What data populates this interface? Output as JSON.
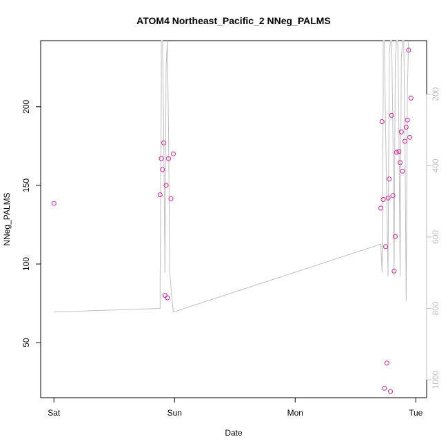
{
  "chart_data": {
    "type": "scatter",
    "title": "ATOM4 Northeast_Pacific_2 NNeg_PALMS",
    "xlabel": "Date",
    "ylabel": "NNeg_PALMS",
    "x_ticks": [
      {
        "x": 0,
        "label": "Sat"
      },
      {
        "x": 1,
        "label": "Sun"
      },
      {
        "x": 2,
        "label": "Mon"
      },
      {
        "x": 3,
        "label": "Tue"
      }
    ],
    "y_ticks": [
      50,
      100,
      150,
      200
    ],
    "y2_ticks": [
      200,
      400,
      600,
      800,
      1000
    ],
    "xlim": [
      -0.11,
      3.09
    ],
    "ylim": [
      15,
      242
    ],
    "y2lim": [
      50,
      1050
    ],
    "y2_reversed": true,
    "point_color": "#e6199b",
    "line_color": "#bebebe",
    "series": [
      {
        "kind": "points",
        "points": [
          [
            0.0,
            138.5
          ],
          [
            0.88,
            144.0
          ],
          [
            0.89,
            167.0
          ],
          [
            0.9,
            160.0
          ],
          [
            0.91,
            177.0
          ],
          [
            0.92,
            80.0
          ],
          [
            0.93,
            150.0
          ],
          [
            0.94,
            78.5
          ],
          [
            0.95,
            167.0
          ],
          [
            0.97,
            141.5
          ],
          [
            0.99,
            170.0
          ],
          [
            2.71,
            135.5
          ],
          [
            2.72,
            190.5
          ],
          [
            2.73,
            141.0
          ],
          [
            2.74,
            21.0
          ],
          [
            2.75,
            111.0
          ],
          [
            2.76,
            37.0
          ],
          [
            2.77,
            142.0
          ],
          [
            2.78,
            154.0
          ],
          [
            2.79,
            19.0
          ],
          [
            2.8,
            194.5
          ],
          [
            2.81,
            143.5
          ],
          [
            2.82,
            95.5
          ],
          [
            2.83,
            117.5
          ],
          [
            2.84,
            171.0
          ],
          [
            2.86,
            171.5
          ],
          [
            2.87,
            164.5
          ],
          [
            2.88,
            184.0
          ],
          [
            2.89,
            159.0
          ],
          [
            2.91,
            178.0
          ],
          [
            2.92,
            187.0
          ],
          [
            2.93,
            191.5
          ],
          [
            2.94,
            236.0
          ],
          [
            2.95,
            180.5
          ],
          [
            2.96,
            205.5
          ]
        ]
      },
      {
        "kind": "depth-line",
        "axis": "y2",
        "points": [
          [
            0.0,
            810
          ],
          [
            0.88,
            800
          ],
          [
            0.88,
            730
          ],
          [
            0.89,
            200
          ],
          [
            0.89,
            50
          ],
          [
            0.9,
            50
          ],
          [
            0.91,
            300
          ],
          [
            0.92,
            700
          ],
          [
            0.93,
            120
          ],
          [
            0.94,
            50
          ],
          [
            0.95,
            300
          ],
          [
            0.96,
            700
          ],
          [
            0.98,
            780
          ],
          [
            0.99,
            810
          ],
          [
            2.71,
            620
          ],
          [
            2.72,
            700
          ],
          [
            2.73,
            200
          ],
          [
            2.73,
            50
          ],
          [
            2.74,
            50
          ],
          [
            2.75,
            300
          ],
          [
            2.77,
            710
          ],
          [
            2.78,
            90
          ],
          [
            2.79,
            50
          ],
          [
            2.8,
            50
          ],
          [
            2.81,
            300
          ],
          [
            2.82,
            710
          ],
          [
            2.83,
            100
          ],
          [
            2.84,
            50
          ],
          [
            2.85,
            50
          ],
          [
            2.86,
            300
          ],
          [
            2.87,
            710
          ],
          [
            2.88,
            100
          ],
          [
            2.89,
            50
          ],
          [
            2.9,
            50
          ],
          [
            2.91,
            300
          ],
          [
            2.92,
            780
          ],
          [
            2.93,
            200
          ],
          [
            2.94,
            50
          ]
        ]
      }
    ]
  }
}
